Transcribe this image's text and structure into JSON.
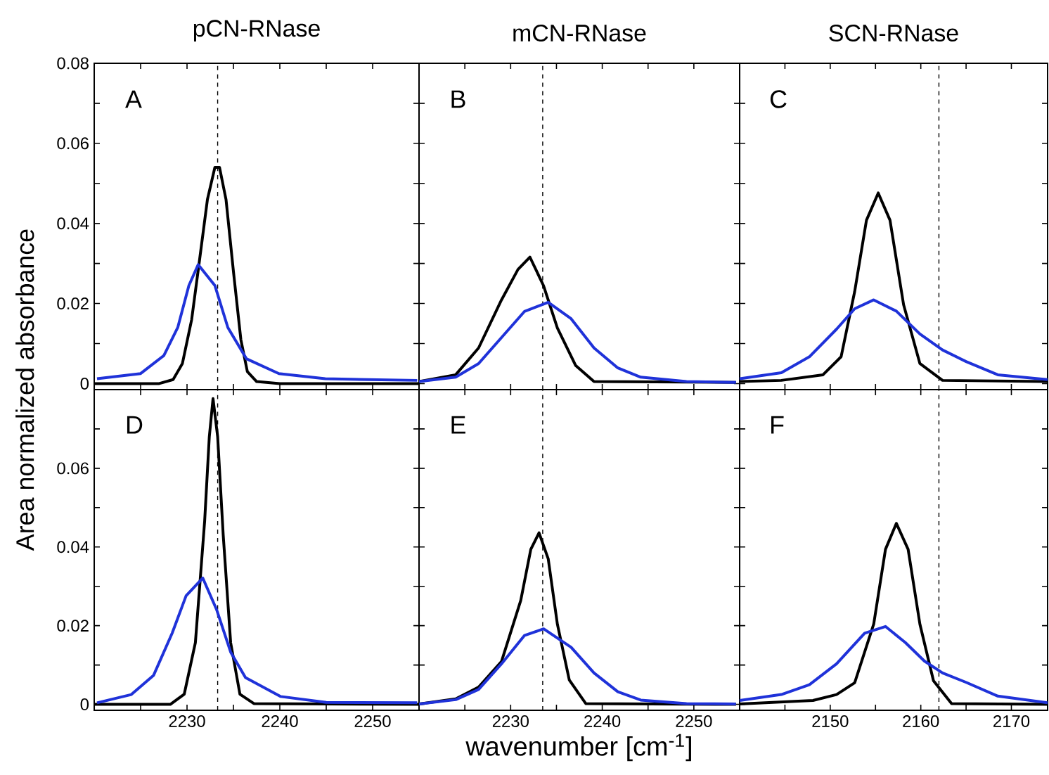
{
  "chart_data": [
    {
      "type": "line",
      "title": "pCN-RNase",
      "ylabel": "Area normalized absorbance",
      "annotations": [
        "A"
      ],
      "xlim": [
        2220,
        2255
      ],
      "ylim": [
        -0.0015,
        0.08
      ],
      "xticks": [
        {
          "value": 2225,
          "label": null
        },
        2230,
        {
          "value": 2235,
          "label": null
        },
        2240,
        {
          "value": 2245,
          "label": null
        },
        2250
      ],
      "yticks": [
        0,
        {
          "value": 0.01,
          "label": null
        },
        0.02,
        {
          "value": 0.03,
          "label": null
        },
        0.04,
        {
          "value": 0.05,
          "label": null
        },
        0.06,
        {
          "value": 0.07,
          "label": null
        },
        0.08
      ],
      "tick_labels": "y",
      "ref_lines": [
        {
          "axis": "x",
          "value": 2233.3,
          "color": "#000000",
          "line_style": "dashed"
        }
      ],
      "series": [
        {
          "color": "#000000",
          "x": [
            2220,
            2227,
            2228.5,
            2229.5,
            2230.5,
            2231.3,
            2232.2,
            2233,
            2233.5,
            2234.2,
            2235,
            2235.8,
            2236.5,
            2237.5,
            2240,
            2255
          ],
          "values": [
            0,
            0,
            0.001,
            0.005,
            0.016,
            0.03,
            0.046,
            0.054,
            0.054,
            0.046,
            0.028,
            0.011,
            0.003,
            0.0005,
            0,
            0
          ]
        },
        {
          "color": "#1f32d9",
          "x": [
            2220.3,
            2225,
            2227.5,
            2229,
            2230.2,
            2231.2,
            2233,
            2234.4,
            2236.4,
            2239.9,
            2244.9,
            2254.8
          ],
          "values": [
            0.0012,
            0.0025,
            0.007,
            0.014,
            0.0245,
            0.0297,
            0.0245,
            0.014,
            0.0062,
            0.0025,
            0.0012,
            0.0008
          ]
        }
      ]
    },
    {
      "type": "line",
      "title": "mCN-RNase",
      "annotations": [
        "B"
      ],
      "xlim": [
        2220,
        2255
      ],
      "ylim": [
        -0.0015,
        0.08
      ],
      "xticks": [
        {
          "value": 2225,
          "label": null
        },
        2230,
        {
          "value": 2235,
          "label": null
        },
        2240,
        {
          "value": 2245,
          "label": null
        },
        2250
      ],
      "yticks": [
        0,
        {
          "value": 0.01,
          "label": null
        },
        0.02,
        {
          "value": 0.03,
          "label": null
        },
        0.04,
        {
          "value": 0.05,
          "label": null
        },
        0.06,
        {
          "value": 0.07,
          "label": null
        },
        0.08
      ],
      "tick_labels": false,
      "ref_lines": [
        {
          "axis": "x",
          "value": 2233.5,
          "color": "#000000",
          "line_style": "dashed"
        }
      ],
      "series": [
        {
          "color": "#000000",
          "x": [
            2220,
            2224,
            2226.5,
            2229,
            2230.8,
            2232.1,
            2233.6,
            2235.1,
            2237.1,
            2239.1,
            2254.6
          ],
          "values": [
            0.0005,
            0.0022,
            0.0089,
            0.0209,
            0.0285,
            0.0316,
            0.0244,
            0.0139,
            0.0045,
            0.0005,
            0.0003
          ]
        },
        {
          "color": "#1f32d9",
          "x": [
            2220,
            2224,
            2226.5,
            2229,
            2231.5,
            2234.1,
            2236.6,
            2239.1,
            2241.7,
            2244.2,
            2249.2,
            2254.6
          ],
          "values": [
            0.0005,
            0.0016,
            0.005,
            0.0115,
            0.018,
            0.0203,
            0.0162,
            0.0089,
            0.0039,
            0.0016,
            0.0005,
            0.0003
          ]
        }
      ]
    },
    {
      "type": "line",
      "title": "SCN-RNase",
      "annotations": [
        "C"
      ],
      "xlim": [
        2140,
        2174
      ],
      "ylim": [
        -0.0015,
        0.08
      ],
      "xticks": [
        {
          "value": 2145,
          "label": null
        },
        2150,
        {
          "value": 2155,
          "label": null
        },
        2160,
        {
          "value": 2165,
          "label": null
        },
        2170
      ],
      "yticks": [
        0,
        {
          "value": 0.01,
          "label": null
        },
        0.02,
        {
          "value": 0.03,
          "label": null
        },
        0.04,
        {
          "value": 0.05,
          "label": null
        },
        0.06,
        {
          "value": 0.07,
          "label": null
        },
        0.08
      ],
      "tick_labels": false,
      "ref_lines": [
        {
          "axis": "x",
          "value": 2162,
          "color": "#000000",
          "line_style": "dashed"
        }
      ],
      "series": [
        {
          "color": "#000000",
          "x": [
            2140,
            2144.6,
            2149.2,
            2151.2,
            2152.7,
            2154,
            2155.3,
            2156.6,
            2158.1,
            2159.9,
            2162.4,
            2174
          ],
          "values": [
            0.0005,
            0.0008,
            0.0022,
            0.0067,
            0.023,
            0.0408,
            0.0476,
            0.0408,
            0.0197,
            0.005,
            0.0008,
            0.0005
          ]
        },
        {
          "color": "#1f32d9",
          "x": [
            2140,
            2144.6,
            2147.7,
            2150.7,
            2152.7,
            2154.8,
            2157.3,
            2159.9,
            2162.4,
            2165,
            2168.5,
            2174
          ],
          "values": [
            0.0012,
            0.0027,
            0.0067,
            0.0136,
            0.0187,
            0.0209,
            0.0181,
            0.0124,
            0.0084,
            0.0055,
            0.0022,
            0.001
          ]
        }
      ]
    },
    {
      "type": "line",
      "annotations": [
        "D"
      ],
      "xlim": [
        2220,
        2255
      ],
      "ylim": [
        -0.0015,
        0.08
      ],
      "xticks": [
        {
          "value": 2225,
          "label": null
        },
        2230,
        {
          "value": 2235,
          "label": null
        },
        2240,
        {
          "value": 2245,
          "label": null
        },
        2250
      ],
      "yticks": [
        0,
        {
          "value": 0.01,
          "label": null
        },
        0.02,
        {
          "value": 0.03,
          "label": null
        },
        0.04,
        {
          "value": 0.05,
          "label": null
        },
        0.06,
        {
          "value": 0.07,
          "label": null
        }
      ],
      "ref_lines": [
        {
          "axis": "x",
          "value": 2233.3,
          "color": "#000000",
          "line_style": "dashed"
        }
      ],
      "series": [
        {
          "color": "#000000",
          "x": [
            2220,
            2228.2,
            2229.7,
            2230.9,
            2231.9,
            2232.4,
            2232.8,
            2233.3,
            2233.9,
            2234.7,
            2235.7,
            2237.2,
            2255
          ],
          "values": [
            0,
            0,
            0.0026,
            0.0157,
            0.0466,
            0.068,
            0.0777,
            0.068,
            0.043,
            0.0157,
            0.0026,
            0.0002,
            0
          ]
        },
        {
          "color": "#1f32d9",
          "x": [
            2220.3,
            2224,
            2226.4,
            2228.4,
            2229.9,
            2231.7,
            2233.2,
            2234.7,
            2236.3,
            2240.1,
            2245,
            2254.8
          ],
          "values": [
            0.0004,
            0.0025,
            0.0074,
            0.0181,
            0.0276,
            0.0321,
            0.024,
            0.0133,
            0.0068,
            0.002,
            0.0005,
            0.0004
          ]
        }
      ]
    },
    {
      "type": "line",
      "xlabel": "wavenumber [cm$^{-1}$]",
      "annotations": [
        "E"
      ],
      "xlim": [
        2220,
        2255
      ],
      "ylim": [
        -0.0015,
        0.08
      ],
      "xticks": [
        {
          "value": 2225,
          "label": null
        },
        2230,
        {
          "value": 2235,
          "label": null
        },
        2240,
        {
          "value": 2245,
          "label": null
        },
        2250
      ],
      "yticks": [
        0,
        {
          "value": 0.01,
          "label": null
        },
        0.02,
        {
          "value": 0.03,
          "label": null
        },
        0.04,
        {
          "value": 0.05,
          "label": null
        },
        0.06,
        {
          "value": 0.07,
          "label": null
        }
      ],
      "tick_labels": "x",
      "ref_lines": [
        {
          "axis": "x",
          "value": 2233.5,
          "color": "#000000",
          "line_style": "dashed"
        }
      ],
      "series": [
        {
          "color": "#000000",
          "x": [
            2220,
            2224,
            2226.5,
            2229,
            2231.1,
            2232.2,
            2233.1,
            2234.1,
            2235.1,
            2236.4,
            2238.2,
            2254.6
          ],
          "values": [
            0.0001,
            0.0014,
            0.0044,
            0.0109,
            0.0264,
            0.0394,
            0.0436,
            0.037,
            0.0204,
            0.0062,
            0.0002,
            0
          ]
        },
        {
          "color": "#1f32d9",
          "x": [
            2220,
            2224,
            2226.5,
            2229,
            2231.5,
            2233.6,
            2236.6,
            2239.1,
            2241.7,
            2244.2,
            2249.2,
            2254.6
          ],
          "values": [
            0.0001,
            0.0012,
            0.0038,
            0.0103,
            0.0175,
            0.0192,
            0.0145,
            0.008,
            0.0032,
            0.0011,
            0.0002,
            0.0001
          ]
        }
      ]
    },
    {
      "type": "line",
      "annotations": [
        "F"
      ],
      "xlim": [
        2140,
        2174
      ],
      "ylim": [
        -0.0015,
        0.08
      ],
      "xticks": [
        {
          "value": 2145,
          "label": null
        },
        2150,
        {
          "value": 2155,
          "label": null
        },
        2160,
        {
          "value": 2165,
          "label": null
        },
        2170
      ],
      "yticks": [
        0,
        {
          "value": 0.01,
          "label": null
        },
        0.02,
        {
          "value": 0.03,
          "label": null
        },
        0.04,
        {
          "value": 0.05,
          "label": null
        },
        0.06,
        {
          "value": 0.07,
          "label": null
        }
      ],
      "tick_labels": "x",
      "ref_lines": [
        {
          "axis": "x",
          "value": 2162,
          "color": "#000000",
          "line_style": "dashed"
        }
      ],
      "series": [
        {
          "color": "#000000",
          "x": [
            2140,
            2148.1,
            2150.7,
            2152.7,
            2154.8,
            2156.1,
            2157.3,
            2158.6,
            2159.9,
            2161.4,
            2163.4,
            2174
          ],
          "values": [
            0.0001,
            0.001,
            0.0025,
            0.0055,
            0.0204,
            0.0394,
            0.046,
            0.0394,
            0.0204,
            0.006,
            0.0002,
            0
          ]
        },
        {
          "color": "#1f32d9",
          "x": [
            2140,
            2144.6,
            2147.7,
            2150.7,
            2153.8,
            2156.1,
            2158.3,
            2160.4,
            2162.4,
            2165,
            2168.5,
            2174
          ],
          "values": [
            0.001,
            0.0025,
            0.005,
            0.0103,
            0.0181,
            0.0198,
            0.0157,
            0.011,
            0.008,
            0.0056,
            0.0021,
            0.0004
          ]
        }
      ]
    }
  ]
}
